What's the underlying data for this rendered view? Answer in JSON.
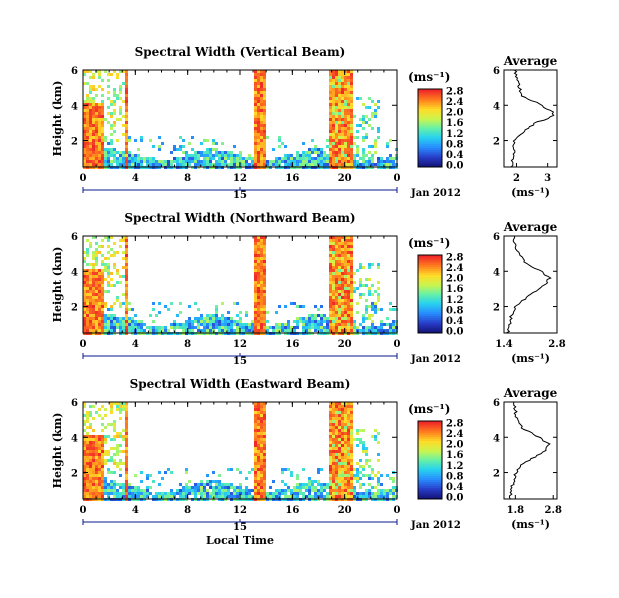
{
  "chart_data": [
    {
      "type": "heatmap",
      "title": "Spectral Width (Vertical Beam)",
      "ylabel": "Height (km)",
      "xlabel": "",
      "x_ticks": [
        "0",
        "4",
        "8",
        "12",
        "16",
        "20",
        "0"
      ],
      "y_ticks": [
        "2",
        "4",
        "6"
      ],
      "xlim": [
        0,
        24
      ],
      "ylim": [
        0.5,
        6
      ],
      "date_marker": "15",
      "date_label": "Jan 2012",
      "colorbar": {
        "unit": "(ms⁻¹)",
        "ticks": [
          "0.0",
          "0.4",
          "0.8",
          "1.2",
          "1.6",
          "2.0",
          "2.4",
          "2.8"
        ]
      },
      "profile": {
        "title": "Average",
        "xlabel": "(ms⁻¹)",
        "x_ticks": [
          "2",
          "3"
        ],
        "xlim": [
          1.6,
          3.3
        ],
        "y_ticks": [
          "2",
          "4",
          "6"
        ],
        "ylim": [
          0.5,
          6
        ],
        "heights": [
          0.5,
          1.0,
          1.5,
          2.0,
          2.5,
          3.0,
          3.3,
          3.6,
          3.9,
          4.2,
          4.5,
          5.0,
          5.5,
          6.0
        ],
        "values": [
          1.85,
          1.9,
          1.95,
          1.9,
          2.2,
          2.6,
          3.1,
          3.2,
          2.9,
          2.6,
          2.2,
          2.1,
          2.0,
          1.95
        ]
      }
    },
    {
      "type": "heatmap",
      "title": "Spectral Width (Northward Beam)",
      "ylabel": "Height (km)",
      "xlabel": "",
      "x_ticks": [
        "0",
        "4",
        "8",
        "12",
        "16",
        "20",
        "0"
      ],
      "y_ticks": [
        "2",
        "4",
        "6"
      ],
      "xlim": [
        0,
        24
      ],
      "ylim": [
        0.5,
        6
      ],
      "date_marker": "15",
      "date_label": "Jan 2012",
      "colorbar": {
        "unit": "(ms⁻¹)",
        "ticks": [
          "0.0",
          "0.4",
          "0.8",
          "1.2",
          "1.6",
          "2.0",
          "2.4",
          "2.8"
        ]
      },
      "profile": {
        "title": "Average",
        "xlabel": "(ms⁻¹)",
        "x_ticks": [
          "1.4",
          "2.8"
        ],
        "xlim": [
          1.4,
          2.8
        ],
        "y_ticks": [
          "2",
          "4",
          "6"
        ],
        "ylim": [
          0.5,
          6
        ],
        "heights": [
          0.5,
          1.0,
          1.5,
          2.0,
          2.5,
          3.0,
          3.3,
          3.6,
          3.9,
          4.2,
          4.5,
          5.0,
          5.5,
          6.0
        ],
        "values": [
          1.5,
          1.55,
          1.6,
          1.7,
          2.0,
          2.3,
          2.5,
          2.6,
          2.45,
          2.2,
          1.95,
          1.8,
          1.7,
          1.65
        ]
      }
    },
    {
      "type": "heatmap",
      "title": "Spectral Width (Eastward Beam)",
      "ylabel": "Height (km)",
      "xlabel": "Local Time",
      "x_ticks": [
        "0",
        "4",
        "8",
        "12",
        "16",
        "20",
        "0"
      ],
      "y_ticks": [
        "2",
        "4",
        "6"
      ],
      "xlim": [
        0,
        24
      ],
      "ylim": [
        0.5,
        6
      ],
      "date_marker": "15",
      "date_label": "Jan 2012",
      "colorbar": {
        "unit": "(ms⁻¹)",
        "ticks": [
          "0.0",
          "0.4",
          "0.8",
          "1.2",
          "1.6",
          "2.0",
          "2.4",
          "2.8"
        ]
      },
      "profile": {
        "title": "Average",
        "xlabel": "(ms⁻¹)",
        "x_ticks": [
          "1.8",
          "2.8"
        ],
        "xlim": [
          1.5,
          2.9
        ],
        "y_ticks": [
          "2",
          "4",
          "6"
        ],
        "ylim": [
          0.5,
          6
        ],
        "heights": [
          0.5,
          1.0,
          1.5,
          2.0,
          2.5,
          3.0,
          3.3,
          3.6,
          3.9,
          4.2,
          4.5,
          5.0,
          5.5,
          6.0
        ],
        "values": [
          1.65,
          1.7,
          1.75,
          1.8,
          2.0,
          2.4,
          2.6,
          2.7,
          2.5,
          2.25,
          2.0,
          1.85,
          1.8,
          1.75
        ]
      }
    }
  ]
}
